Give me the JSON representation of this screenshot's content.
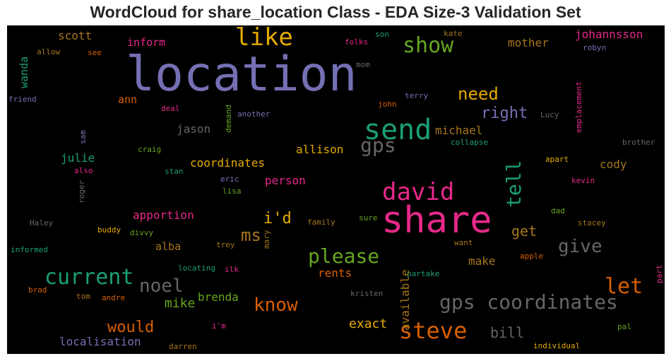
{
  "title": "WordCloud for share_location Class - EDA Size-3 Validation Set",
  "chart_data": {
    "type": "wordcloud",
    "background": "#000000",
    "palette": [
      "#7570b3",
      "#1b9e77",
      "#d95f02",
      "#e7298a",
      "#66a61e",
      "#e6ab02",
      "#a6761d",
      "#666666"
    ],
    "words": [
      "location",
      "share",
      "send",
      "david",
      "gps coordinates",
      "steve",
      "like",
      "show",
      "current",
      "please",
      "tell",
      "let",
      "noel",
      "know",
      "gps",
      "need",
      "give",
      "i'd",
      "ms",
      "would",
      "right",
      "johannsson",
      "mother",
      "scott",
      "inform",
      "get",
      "coordinates",
      "allison",
      "michael",
      "jason",
      "cody",
      "person",
      "apportion",
      "exact",
      "bill",
      "mike",
      "brenda",
      "alba",
      "make",
      "rents",
      "julie",
      "ann",
      "localisation",
      "wanda",
      "friend",
      "available",
      "emplacement",
      "terry",
      "kate",
      "son",
      "folks",
      "robyn",
      "allow",
      "see",
      "mom",
      "deal",
      "another",
      "john",
      "Lucy",
      "demand",
      "sam",
      "collapse",
      "brother",
      "craig",
      "stan",
      "also",
      "eric",
      "roger",
      "lisa",
      "kevin",
      "apart",
      "Haley",
      "buddy",
      "divvy",
      "family",
      "mary",
      "sure",
      "dad",
      "stacey",
      "informed",
      "trey",
      "want",
      "apple",
      "locating",
      "ilk",
      "partake",
      "part",
      "brad",
      "tom",
      "andre",
      "kristen",
      "pal",
      "i'm",
      "darren",
      "individual"
    ]
  }
}
